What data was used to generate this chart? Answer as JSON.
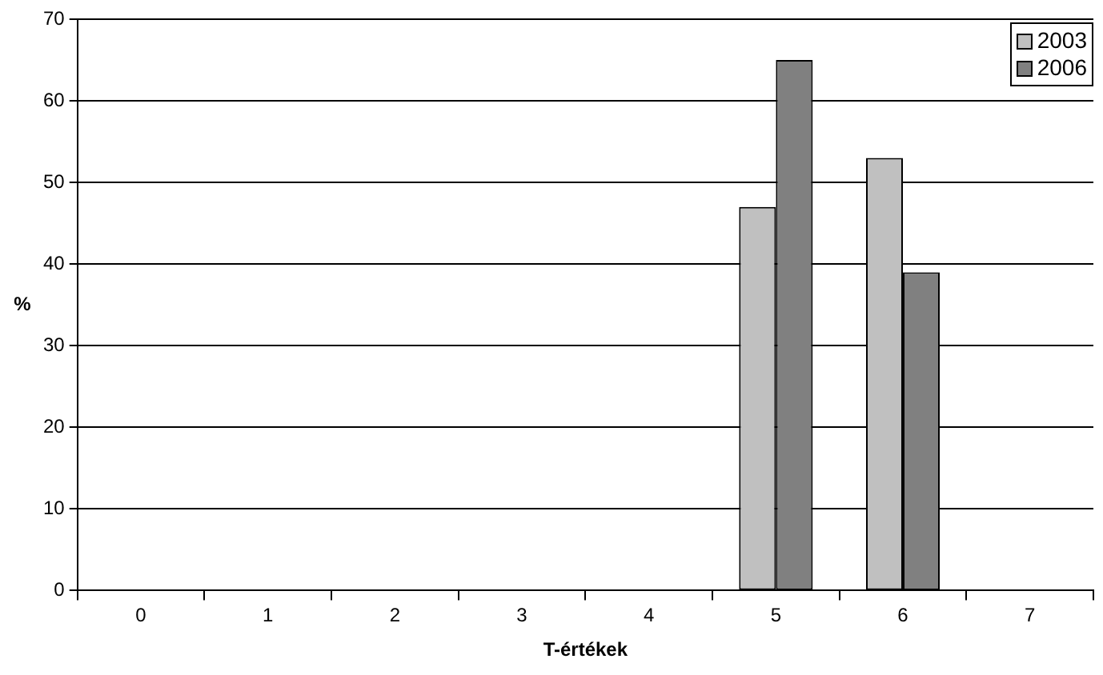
{
  "chart_data": {
    "type": "bar",
    "xlabel": "T-értékek",
    "ylabel": "%",
    "categories": [
      "0",
      "1",
      "2",
      "3",
      "4",
      "5",
      "6",
      "7"
    ],
    "series": [
      {
        "name": "2003",
        "color": "#c0c0c0",
        "values": [
          0,
          0,
          0,
          0,
          0,
          47,
          53,
          0
        ]
      },
      {
        "name": "2006",
        "color": "#808080",
        "values": [
          0,
          0,
          0,
          0,
          0,
          65,
          39,
          0
        ]
      }
    ],
    "ylim": [
      0,
      70
    ],
    "yticks": [
      0,
      10,
      20,
      30,
      40,
      50,
      60,
      70
    ],
    "grid": "y",
    "legend": "top right"
  }
}
